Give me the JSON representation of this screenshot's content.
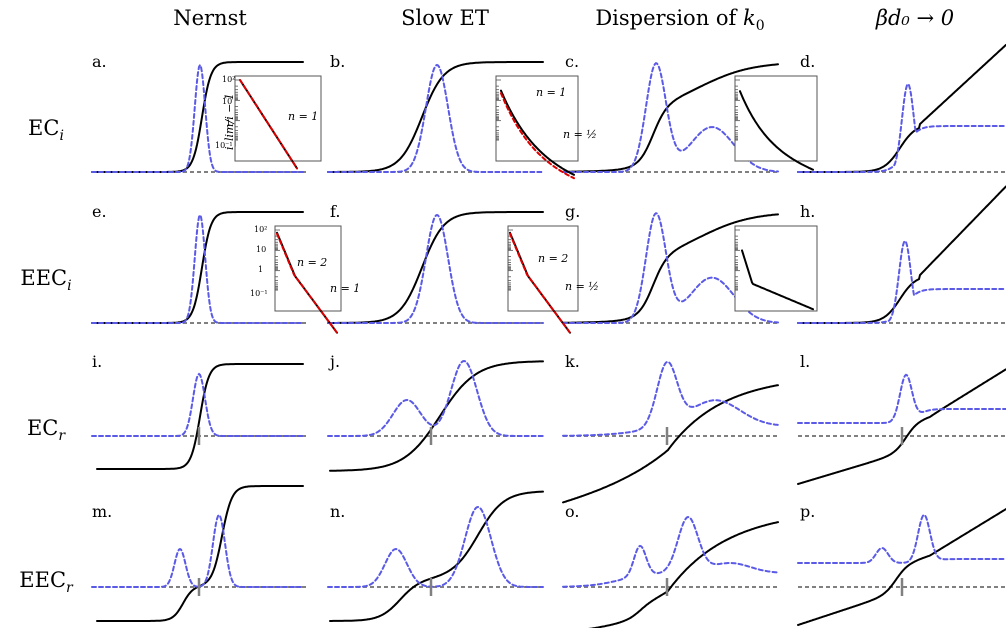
{
  "column_titles": [
    "Nernst",
    "Slow ET",
    "Dispersion of ",
    "βd₀ → 0"
  ],
  "column_title_math": {
    "k0_symbol": "k",
    "k0_sub": "0"
  },
  "row_labels": [
    {
      "main": "EC",
      "sub": "i"
    },
    {
      "main": "EEC",
      "sub": "i"
    },
    {
      "main": "EC",
      "sub": "r"
    },
    {
      "main": "EEC",
      "sub": "r"
    }
  ],
  "panel_labels": [
    "a.",
    "b.",
    "c.",
    "d.",
    "e.",
    "f.",
    "g.",
    "h.",
    "i.",
    "j.",
    "k.",
    "l.",
    "m.",
    "n.",
    "o.",
    "p."
  ],
  "inset": {
    "ylabel": "i_lim/i − 1",
    "yticks": [
      "10²",
      "10",
      "1",
      "10⁻¹"
    ],
    "a_label": "n = 1",
    "c_label_top": "n = 1",
    "c_label_bottom": "n = ½",
    "f_label_top": "n = 2",
    "f_label_bottom": "n = 1",
    "g_label_top": "n = 2",
    "g_label_bottom": "n = ½"
  },
  "colors": {
    "current": "#000000",
    "derivative": "#5a5ae6",
    "baseline": "#808080",
    "fit": "#dd0000"
  }
}
